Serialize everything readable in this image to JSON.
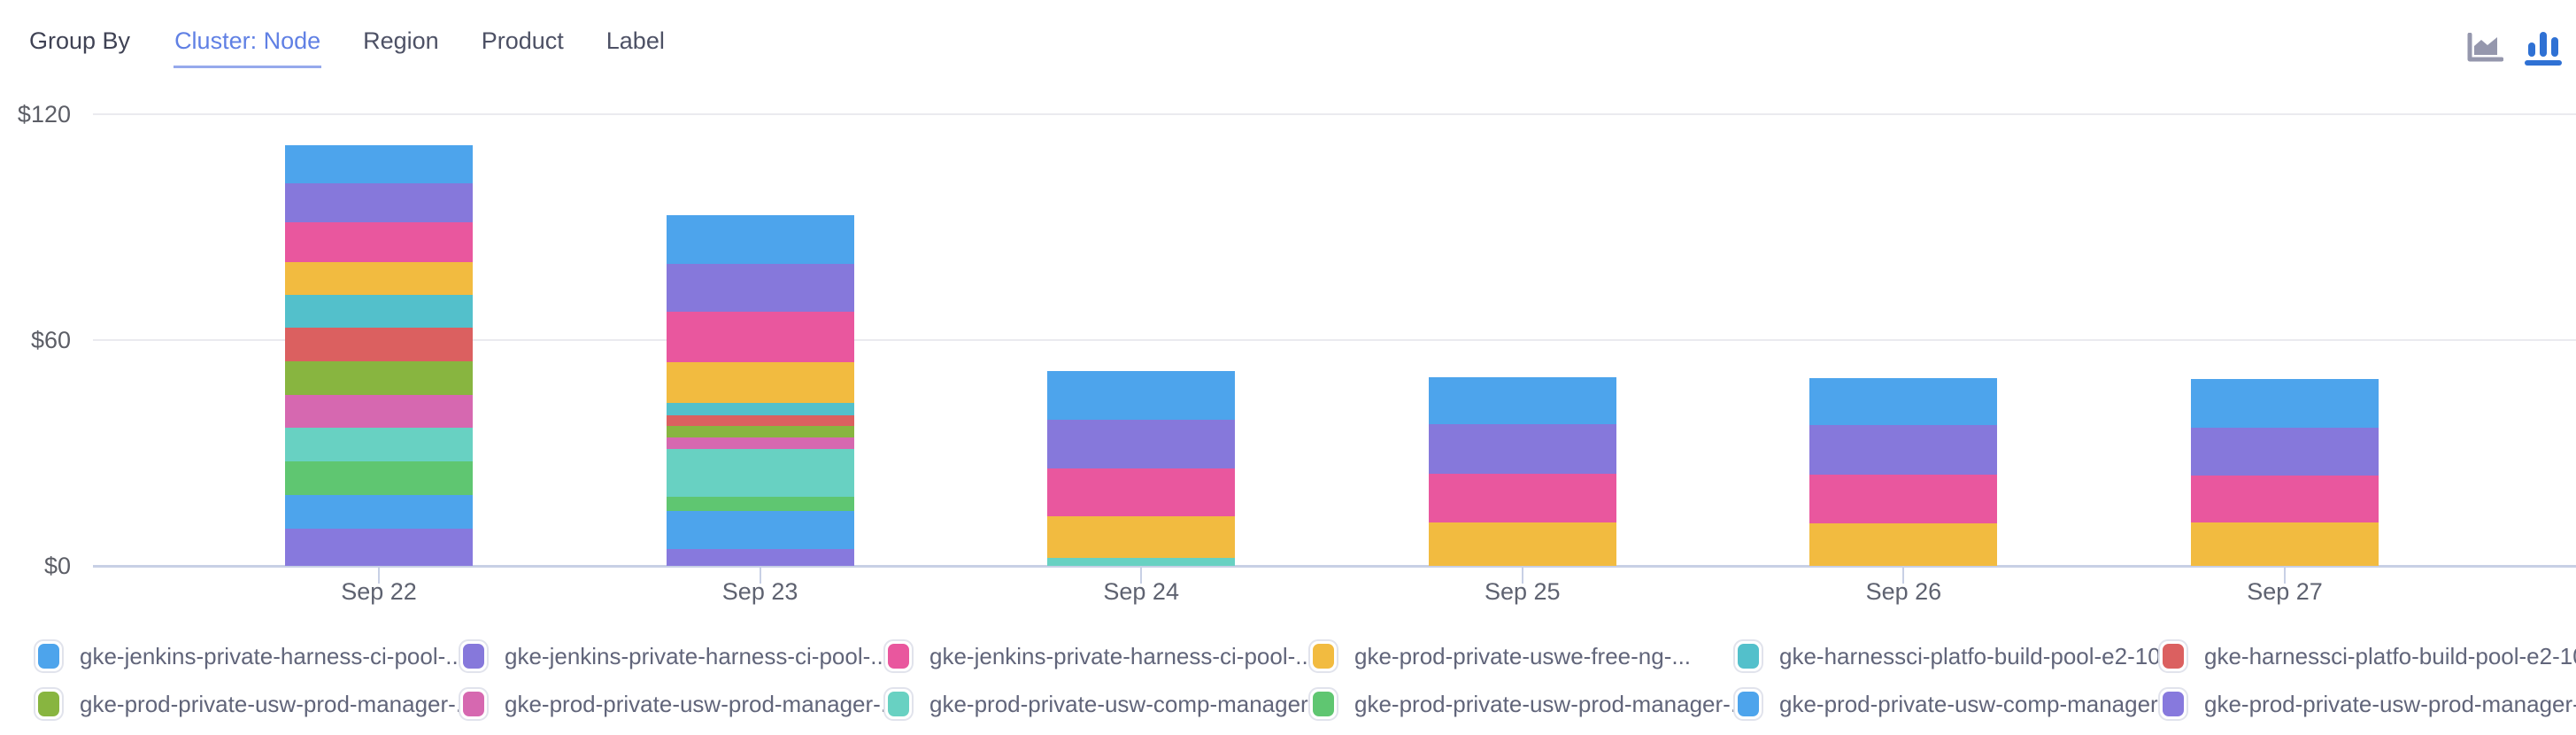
{
  "header": {
    "group_by_label": "Group By",
    "tabs": [
      {
        "label": "Cluster: Node",
        "active": true
      },
      {
        "label": "Region",
        "active": false
      },
      {
        "label": "Product",
        "active": false
      },
      {
        "label": "Label",
        "active": false
      }
    ],
    "view_toggles": {
      "icons": [
        "area-chart-icon",
        "bar-chart-icon"
      ],
      "active_view": "bar"
    }
  },
  "colors": {
    "active_tab": "#6080e4",
    "active_tab_underline": "#96a9ec",
    "inactive_tab": "#4d5165",
    "bar_icon_active": "#2f71d4",
    "area_icon_inactive": "#9597ad",
    "axis_line": "#c8d0e5",
    "gridline": "#eaeaef"
  },
  "chart_data": {
    "type": "bar",
    "stacked": true,
    "title": "",
    "xlabel": "",
    "ylabel": "",
    "unit": "$",
    "grid": true,
    "legend_position": "bottom",
    "categories": [
      "Sep 22",
      "Sep 23",
      "Sep 24",
      "Sep 25",
      "Sep 26",
      "Sep 27"
    ],
    "y_axis": {
      "tick_labels": [
        "$0",
        "$60",
        "$120"
      ],
      "tick_values": [
        0,
        60,
        120
      ],
      "ylim": [
        0,
        120
      ]
    },
    "approx_totals": [
      111.8,
      93.1,
      51.8,
      50.1,
      50.0,
      49.6
    ],
    "series": [
      {
        "name": "gke-jenkins-private-harness-ci-pool-...",
        "color": "#4da4ec",
        "values": [
          10.2,
          12.8,
          12.9,
          12.5,
          12.5,
          12.8
        ]
      },
      {
        "name": "gke-jenkins-private-harness-ci-pool-...",
        "color": "#8678db",
        "values": [
          10.3,
          12.8,
          13.0,
          13.2,
          13.2,
          12.8
        ]
      },
      {
        "name": "gke-jenkins-private-harness-ci-pool-...",
        "color": "#e9579e",
        "values": [
          10.5,
          13.3,
          12.7,
          12.9,
          12.9,
          12.5
        ]
      },
      {
        "name": "gke-prod-private-uswe-free-ng-...",
        "color": "#f2bb40",
        "values": [
          8.7,
          11.0,
          11.0,
          11.5,
          11.4,
          11.5
        ]
      },
      {
        "name": "gke-harnessci-platfo-build-pool-e2-10-...",
        "color": "#53c0cb",
        "values": [
          8.9,
          3.1,
          0,
          0,
          0,
          0
        ]
      },
      {
        "name": "gke-harnessci-platfo-build-pool-e2-10-...",
        "color": "#db6060",
        "values": [
          8.8,
          2.9,
          0,
          0,
          0,
          0
        ]
      },
      {
        "name": "gke-prod-private-usw-prod-manager-...",
        "color": "#88b540",
        "values": [
          8.9,
          3.1,
          0,
          0,
          0,
          0
        ]
      },
      {
        "name": "gke-prod-private-usw-prod-manager-...",
        "color": "#d668b0",
        "values": [
          8.8,
          3.1,
          0,
          0,
          0,
          0
        ]
      },
      {
        "name": "gke-prod-private-usw-comp-manager-...",
        "color": "#68d1c2",
        "values": [
          8.9,
          12.6,
          2.2,
          0,
          0,
          0
        ]
      },
      {
        "name": "gke-prod-private-usw-prod-manager-...",
        "color": "#5fc671",
        "values": [
          8.9,
          3.9,
          0,
          0,
          0,
          0
        ]
      },
      {
        "name": "gke-prod-private-usw-comp-manager-...",
        "color": "#4da4ec",
        "values": [
          8.9,
          10.0,
          0,
          0,
          0,
          0
        ]
      },
      {
        "name": "gke-prod-private-usw-prod-manager-...",
        "color": "#8779dd",
        "values": [
          10.0,
          4.5,
          0,
          0,
          0,
          0
        ]
      }
    ]
  }
}
